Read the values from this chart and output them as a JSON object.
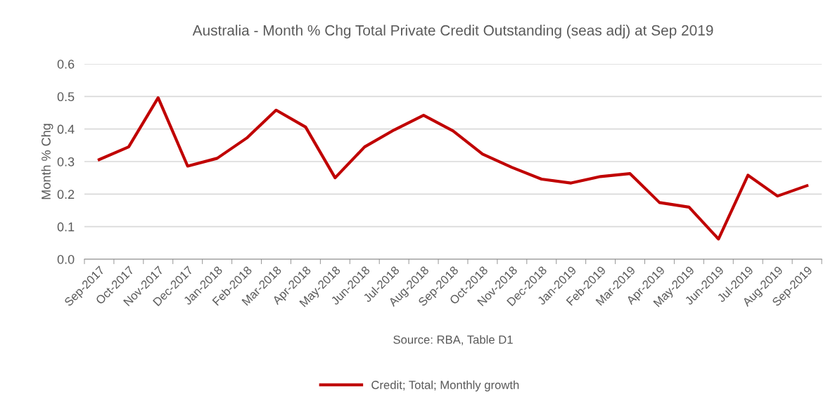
{
  "chart_data": {
    "type": "line",
    "title": "Australia - Month % Chg Total Private Credit Outstanding (seas adj) at Sep 2019",
    "ylabel": "Month % Chg",
    "categories": [
      "Sep-2017",
      "Oct-2017",
      "Nov-2017",
      "Dec-2017",
      "Jan-2018",
      "Feb-2018",
      "Mar-2018",
      "Apr-2018",
      "May-2018",
      "Jun-2018",
      "Jul-2018",
      "Aug-2018",
      "Sep-2018",
      "Oct-2018",
      "Nov-2018",
      "Dec-2018",
      "Jan-2019",
      "Feb-2019",
      "Mar-2019",
      "Apr-2019",
      "May-2019",
      "Jun-2019",
      "Jul-2019",
      "Aug-2019",
      "Sep-2019"
    ],
    "series": [
      {
        "name": "Credit; Total; Monthly growth",
        "color": "#c00000",
        "values": [
          0.306,
          0.345,
          0.496,
          0.286,
          0.31,
          0.372,
          0.458,
          0.406,
          0.25,
          0.345,
          0.397,
          0.442,
          0.394,
          0.323,
          0.282,
          0.246,
          0.234,
          0.254,
          0.263,
          0.174,
          0.16,
          0.062,
          0.258,
          0.194,
          0.226
        ]
      }
    ],
    "ylim": [
      0,
      0.6
    ],
    "yticks": [
      {
        "value": 0,
        "label": "0.0"
      },
      0.1,
      0.2,
      0.3,
      0.4,
      0.5,
      0.6
    ],
    "grid": "y",
    "legend": "bottom",
    "marker": "none",
    "line_style": "solid",
    "annotations": [
      "Source: RBA, Table D1"
    ]
  }
}
